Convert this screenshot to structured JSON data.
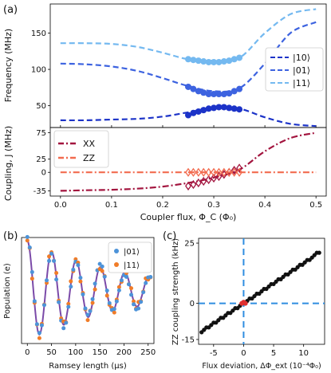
{
  "panel_labels": {
    "a": "(a)",
    "b": "(b)",
    "c": "(c)"
  },
  "colors": {
    "s10": "#1c33c8",
    "s01": "#3d63e0",
    "s11": "#74b9f0",
    "xx": "#a3153f",
    "zz": "#f26b4f",
    "ramsey01": "#4c93d9",
    "ramsey11": "#f07c28",
    "fit": "#7b4aa8",
    "scatter": "#111111",
    "marker": "#e03030",
    "dashed_axis": "#2f8ee0"
  },
  "chart_data": [
    {
      "id": "freq",
      "type": "line",
      "ylabel": "Frequency (MHz)",
      "xlim": [
        -0.02,
        0.52
      ],
      "ylim": [
        20,
        190
      ],
      "yticks": [
        "50",
        "100",
        "150"
      ],
      "ytick_values": [
        50,
        100,
        150
      ],
      "legend_position": "center-right",
      "series": [
        {
          "name": "|10⟩",
          "key": "s10",
          "style": "dashed",
          "x": [
            0.0,
            0.05,
            0.1,
            0.15,
            0.2,
            0.25,
            0.3,
            0.35,
            0.4,
            0.45,
            0.5
          ],
          "y": [
            30,
            30,
            31,
            32,
            35,
            41,
            47,
            46,
            34,
            25,
            22
          ]
        },
        {
          "name": "|01⟩",
          "key": "s01",
          "style": "dashed",
          "x": [
            0.0,
            0.05,
            0.1,
            0.15,
            0.2,
            0.25,
            0.3,
            0.35,
            0.4,
            0.45,
            0.5
          ],
          "y": [
            108,
            107,
            104,
            98,
            88,
            77,
            70,
            74,
            108,
            150,
            165
          ]
        },
        {
          "name": "|11⟩",
          "key": "s11",
          "style": "dashed",
          "x": [
            0.0,
            0.05,
            0.1,
            0.15,
            0.2,
            0.25,
            0.3,
            0.35,
            0.4,
            0.45,
            0.5
          ],
          "y": [
            136,
            136,
            135,
            131,
            123,
            114,
            112,
            116,
            150,
            176,
            183
          ]
        }
      ],
      "points": [
        {
          "key": "s10",
          "x": [
            0.25,
            0.26,
            0.27,
            0.28,
            0.29,
            0.3,
            0.31,
            0.32,
            0.33,
            0.34,
            0.35
          ],
          "y": [
            37,
            40,
            42,
            44,
            46,
            47,
            48,
            48,
            47,
            46,
            45
          ]
        },
        {
          "key": "s01",
          "x": [
            0.25,
            0.26,
            0.27,
            0.28,
            0.29,
            0.3,
            0.31,
            0.32,
            0.33,
            0.34,
            0.35
          ],
          "y": [
            76,
            73,
            70,
            68,
            66,
            66,
            66,
            66,
            67,
            70,
            73
          ]
        },
        {
          "key": "s11",
          "x": [
            0.25,
            0.26,
            0.27,
            0.28,
            0.29,
            0.3,
            0.31,
            0.32,
            0.33,
            0.34,
            0.35
          ],
          "y": [
            114,
            113,
            112,
            111,
            110,
            110,
            110,
            111,
            112,
            114,
            116
          ]
        }
      ]
    },
    {
      "id": "coupling",
      "type": "line",
      "xlabel": "Coupler flux, Φ_C (Φ₀)",
      "ylabel": "Coupling, J (MHz)",
      "xlim": [
        -0.02,
        0.52
      ],
      "ylim": [
        -45,
        85
      ],
      "xticks": [
        "0.0",
        "0.1",
        "0.2",
        "0.3",
        "0.4",
        "0.5"
      ],
      "xtick_values": [
        0.0,
        0.1,
        0.2,
        0.3,
        0.4,
        0.5
      ],
      "yticks": [
        "-35",
        "0",
        "25",
        "75"
      ],
      "ytick_values": [
        -35,
        0,
        25,
        75
      ],
      "legend_position": "top-left",
      "series": [
        {
          "name": "XX",
          "key": "xx",
          "style": "dashdot",
          "x": [
            0.0,
            0.05,
            0.1,
            0.15,
            0.2,
            0.25,
            0.3,
            0.35,
            0.4,
            0.45,
            0.5
          ],
          "y": [
            -35,
            -34,
            -33,
            -31,
            -27,
            -20,
            -10,
            5,
            40,
            65,
            75
          ]
        },
        {
          "name": "ZZ",
          "key": "zz",
          "style": "dashdot",
          "x": [
            0.0,
            0.5
          ],
          "y": [
            0,
            0
          ]
        }
      ],
      "points": [
        {
          "key": "xx",
          "x": [
            0.25,
            0.26,
            0.27,
            0.28,
            0.29,
            0.3,
            0.31,
            0.32,
            0.33,
            0.34,
            0.35
          ],
          "y": [
            -26,
            -23,
            -20,
            -17,
            -14,
            -11,
            -8,
            -4,
            0,
            4,
            8
          ]
        },
        {
          "key": "zz",
          "x": [
            0.25,
            0.26,
            0.27,
            0.28,
            0.29,
            0.3,
            0.31,
            0.32,
            0.33,
            0.34,
            0.35
          ],
          "y": [
            0,
            0,
            0,
            0,
            0,
            0,
            0,
            0,
            0,
            0,
            0
          ]
        }
      ]
    },
    {
      "id": "ramsey",
      "type": "line",
      "xlabel": "Ramsey length (μs)",
      "ylabel": "Population (e)",
      "xlim": [
        -12,
        262
      ],
      "ylim": [
        -0.03,
        1.03
      ],
      "xticks": [
        "0",
        "50",
        "100",
        "150",
        "200",
        "250"
      ],
      "xtick_values": [
        0,
        50,
        100,
        150,
        200,
        250
      ],
      "legend_position": "top-right",
      "series": [
        {
          "name": "|01⟩",
          "key": "ramsey01"
        },
        {
          "name": "|11⟩",
          "key": "ramsey11"
        }
      ],
      "model": {
        "period": 50.5,
        "decay": 200,
        "mean": 0.5,
        "amplitude": 0.5,
        "step": 5
      }
    },
    {
      "id": "zz",
      "type": "scatter",
      "xlabel": "Flux deviation, ΔΦ_ext (10⁻⁴Φ₀)",
      "ylabel": "ZZ coupling strength (kHz)",
      "xlim": [
        -7.5,
        13.5
      ],
      "ylim": [
        -17,
        27
      ],
      "xticks": [
        "-5",
        "0",
        "5",
        "10"
      ],
      "xtick_values": [
        -5,
        0,
        5,
        10
      ],
      "yticks": [
        "-15",
        "0",
        "25"
      ],
      "ytick_values": [
        -15,
        0,
        25
      ],
      "x": [
        -7,
        -6.6,
        -6.2,
        -5.8,
        -5.4,
        -5,
        -4.6,
        -4.2,
        -3.8,
        -3.4,
        -3,
        -2.6,
        -2.2,
        -1.8,
        -1.4,
        -1,
        -0.6,
        -0.2,
        0.2,
        0.6,
        1,
        1.4,
        1.8,
        2.2,
        2.6,
        3,
        3.4,
        3.8,
        4.2,
        4.6,
        5,
        5.4,
        5.8,
        6.2,
        6.6,
        7,
        7.4,
        7.8,
        8.2,
        8.6,
        9,
        9.4,
        9.8,
        10.2,
        10.6,
        11,
        11.4,
        11.8,
        12.2,
        12.6
      ],
      "y": [
        -12,
        -11,
        -10,
        -10,
        -9,
        -8,
        -8,
        -7,
        -6,
        -6,
        -5,
        -4,
        -4,
        -3,
        -2,
        -2,
        -1,
        0,
        0,
        1,
        2,
        2,
        3,
        4,
        4,
        5,
        6,
        6,
        7,
        8,
        8,
        9,
        10,
        10,
        11,
        12,
        12,
        13,
        14,
        14,
        15,
        16,
        16,
        17,
        18,
        18,
        19,
        20,
        21,
        21
      ],
      "highlight": {
        "x": [
          -0.3,
          0,
          0.3
        ],
        "y": [
          0,
          0.5,
          0
        ]
      }
    }
  ]
}
